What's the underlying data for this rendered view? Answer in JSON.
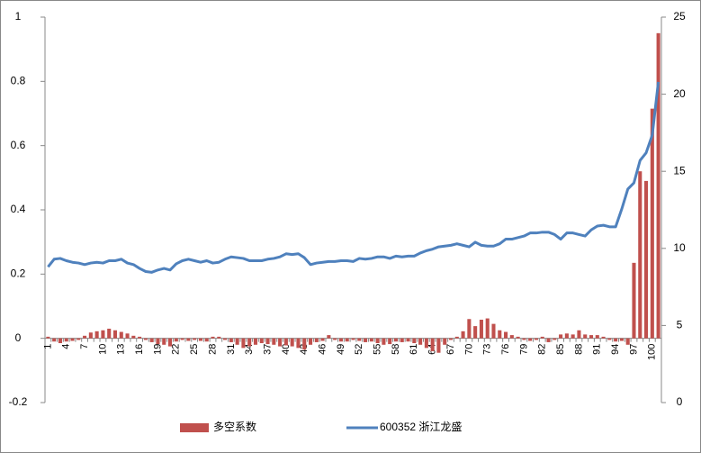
{
  "chart_data": {
    "type": "bar",
    "categories": [
      "1",
      null,
      null,
      "4",
      null,
      null,
      "7",
      null,
      null,
      "10",
      null,
      null,
      "13",
      null,
      null,
      "16",
      null,
      null,
      "19",
      null,
      null,
      "22",
      null,
      null,
      "25",
      null,
      null,
      "28",
      null,
      null,
      "31",
      null,
      null,
      "34",
      null,
      null,
      "37",
      null,
      null,
      "40",
      null,
      null,
      "43",
      null,
      null,
      "46",
      null,
      null,
      "49",
      null,
      null,
      "52",
      null,
      null,
      "55",
      null,
      null,
      "58",
      null,
      null,
      "61",
      null,
      null,
      "64",
      null,
      null,
      "67",
      null,
      null,
      "70",
      null,
      null,
      "73",
      null,
      null,
      "76",
      null,
      null,
      "79",
      null,
      null,
      "82",
      null,
      null,
      "85",
      null,
      null,
      "88",
      null,
      null,
      "91",
      null,
      null,
      "94",
      null,
      null,
      "97",
      null,
      null,
      "100",
      null
    ],
    "series": [
      {
        "name": "多空系数",
        "type": "bar",
        "axis": "y",
        "color": "#c0504d",
        "values": [
          0.005,
          -0.01,
          -0.015,
          -0.01,
          -0.008,
          -0.005,
          0.008,
          0.018,
          0.022,
          0.025,
          0.03,
          0.025,
          0.02,
          0.015,
          0.008,
          0.005,
          -0.005,
          -0.012,
          -0.018,
          -0.02,
          -0.025,
          -0.01,
          -0.005,
          -0.008,
          -0.005,
          -0.008,
          -0.01,
          0.005,
          0.005,
          -0.005,
          -0.012,
          -0.02,
          -0.03,
          -0.025,
          -0.02,
          -0.015,
          -0.018,
          -0.02,
          -0.025,
          -0.022,
          -0.025,
          -0.03,
          -0.035,
          -0.02,
          -0.012,
          -0.008,
          0.01,
          -0.005,
          -0.01,
          -0.01,
          -0.005,
          -0.008,
          -0.012,
          -0.01,
          -0.015,
          -0.02,
          -0.018,
          -0.01,
          -0.012,
          -0.01,
          -0.015,
          -0.02,
          -0.03,
          -0.04,
          -0.045,
          -0.02,
          -0.005,
          0.005,
          0.022,
          0.06,
          0.038,
          0.058,
          0.062,
          0.045,
          0.025,
          0.02,
          0.01,
          0.005,
          -0.005,
          -0.008,
          -0.005,
          0.005,
          -0.012,
          -0.005,
          0.012,
          0.015,
          0.012,
          0.025,
          0.012,
          0.01,
          0.01,
          0.005,
          -0.005,
          -0.01,
          -0.008,
          -0.02,
          0.235,
          0.52,
          0.49,
          0.715,
          0.95
        ]
      },
      {
        "name": "600352 浙江龙盛",
        "type": "line",
        "axis": "y2",
        "color": "#4f81bd",
        "values": [
          8.8,
          9.3,
          9.35,
          9.2,
          9.1,
          9.05,
          8.95,
          9.05,
          9.1,
          9.05,
          9.2,
          9.2,
          9.3,
          9.05,
          8.95,
          8.7,
          8.5,
          8.45,
          8.6,
          8.7,
          8.6,
          9.0,
          9.2,
          9.3,
          9.2,
          9.1,
          9.2,
          9.05,
          9.1,
          9.3,
          9.45,
          9.4,
          9.35,
          9.2,
          9.2,
          9.2,
          9.3,
          9.35,
          9.45,
          9.65,
          9.6,
          9.65,
          9.4,
          8.95,
          9.05,
          9.1,
          9.15,
          9.15,
          9.2,
          9.2,
          9.15,
          9.35,
          9.3,
          9.35,
          9.45,
          9.45,
          9.35,
          9.5,
          9.45,
          9.5,
          9.5,
          9.7,
          9.85,
          9.95,
          10.1,
          10.15,
          10.2,
          10.3,
          10.2,
          10.1,
          10.4,
          10.2,
          10.15,
          10.15,
          10.3,
          10.6,
          10.6,
          10.7,
          10.8,
          11.0,
          11.0,
          11.05,
          11.05,
          10.9,
          10.6,
          11.0,
          11.0,
          10.9,
          10.8,
          11.2,
          11.45,
          11.5,
          11.4,
          11.4,
          12.55,
          13.85,
          14.25,
          15.7,
          16.2,
          17.35,
          20.8
        ]
      }
    ],
    "ylim": [
      -0.2,
      1
    ],
    "yticks": [
      -0.2,
      0,
      0.2,
      0.4,
      0.6,
      0.8,
      1
    ],
    "y2lim": [
      0,
      25
    ],
    "y2ticks": [
      0,
      5,
      10,
      15,
      20,
      25
    ],
    "grid": false,
    "legend": "bottom"
  }
}
